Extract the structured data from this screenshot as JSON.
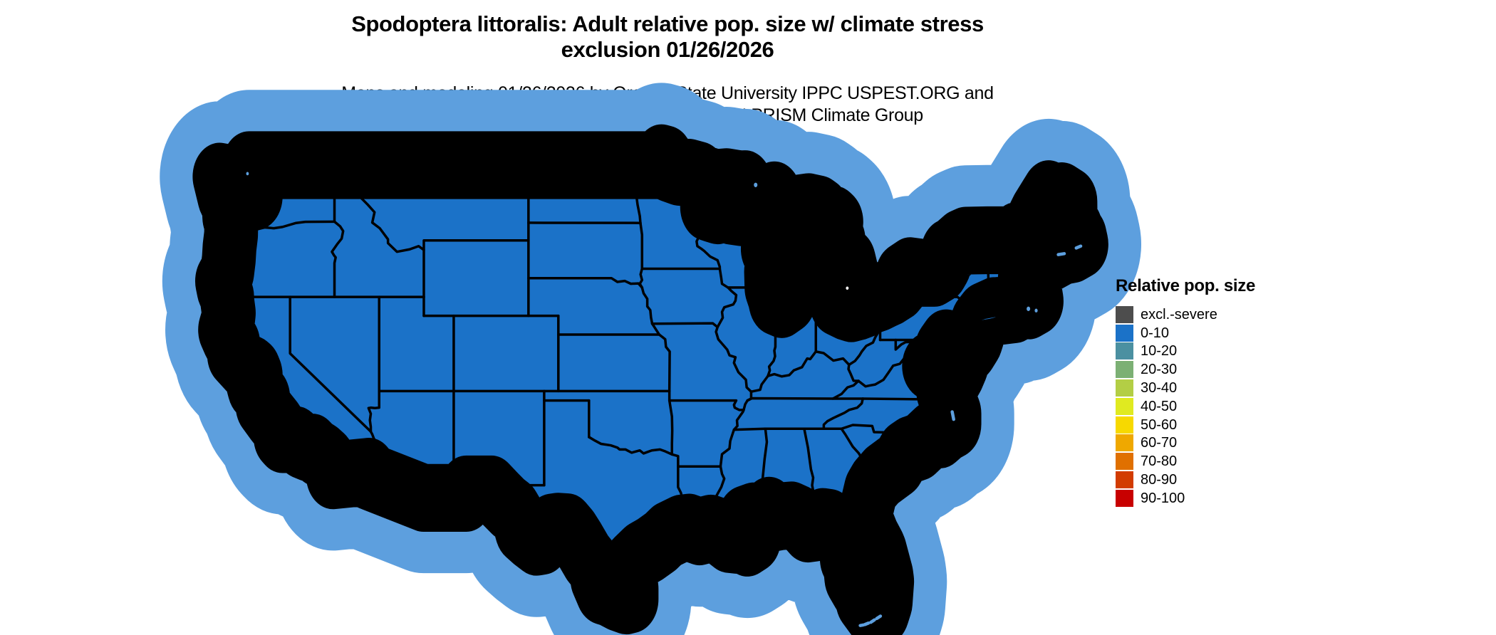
{
  "title": {
    "line1": "Spodoptera littoralis: Adult relative pop. size w/ climate stress",
    "line2": "exclusion 01/26/2026"
  },
  "subtitle": {
    "line1": "Maps and modeling 01/26/2026 by Oregon State University IPPC USPEST.ORG and",
    "line2": "USDA-APHIS-PPQ; climate data from OSU PRISM Climate Group"
  },
  "legend": {
    "title": "Relative pop. size",
    "entries": [
      {
        "label": "excl.-severe",
        "color": "#4D4D4D"
      },
      {
        "label": "0-10",
        "color": "#1B72C8"
      },
      {
        "label": "10-20",
        "color": "#4B90A1"
      },
      {
        "label": "20-30",
        "color": "#7CB074"
      },
      {
        "label": "30-40",
        "color": "#B3CE45"
      },
      {
        "label": "40-50",
        "color": "#E0EA20"
      },
      {
        "label": "50-60",
        "color": "#F7D900"
      },
      {
        "label": "60-70",
        "color": "#EFA800"
      },
      {
        "label": "70-80",
        "color": "#E07000"
      },
      {
        "label": "80-90",
        "color": "#D23C00"
      },
      {
        "label": "90-100",
        "color": "#C80000"
      }
    ]
  },
  "map": {
    "region": "Contiguous United States",
    "displayed_class_all_states": "0-10",
    "fill_color": "#1B72C8",
    "border_color": "#000000",
    "water_color": "#FFFFFF",
    "coast_fringe_color": "#5D9FDE"
  }
}
